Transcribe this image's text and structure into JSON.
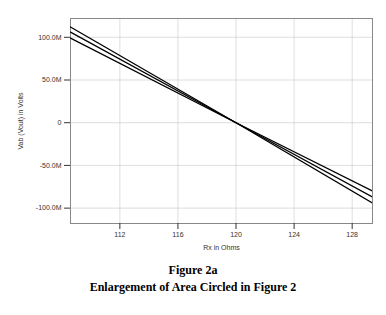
{
  "chart_data": {
    "type": "line",
    "title": "Figure 2a",
    "subtitle": "Enlargement of Area Circled in Figure 2",
    "x_label": "Rx in Ohms",
    "y_label": "Vab (Vout) in Volts",
    "x": [
      108.6,
      120,
      129.4
    ],
    "series": [
      {
        "color": "#000000",
        "values": [
          112,
          0,
          -80
        ]
      },
      {
        "color": "#000000",
        "values": [
          106,
          0,
          -87
        ]
      },
      {
        "color": "#000000",
        "values": [
          99,
          0,
          -94
        ]
      }
    ],
    "xlim": [
      108.6,
      129.4
    ],
    "xticks": [
      112,
      116,
      120,
      124,
      128
    ],
    "ylim": [
      -118,
      122
    ],
    "yticks": [
      {
        "value": -100,
        "label": "-100.0M"
      },
      {
        "value": -50,
        "label": "-50.0M"
      },
      0,
      {
        "value": 50,
        "label": "50.0M"
      },
      {
        "value": 100,
        "label": "100.0M"
      }
    ],
    "grid": true
  }
}
